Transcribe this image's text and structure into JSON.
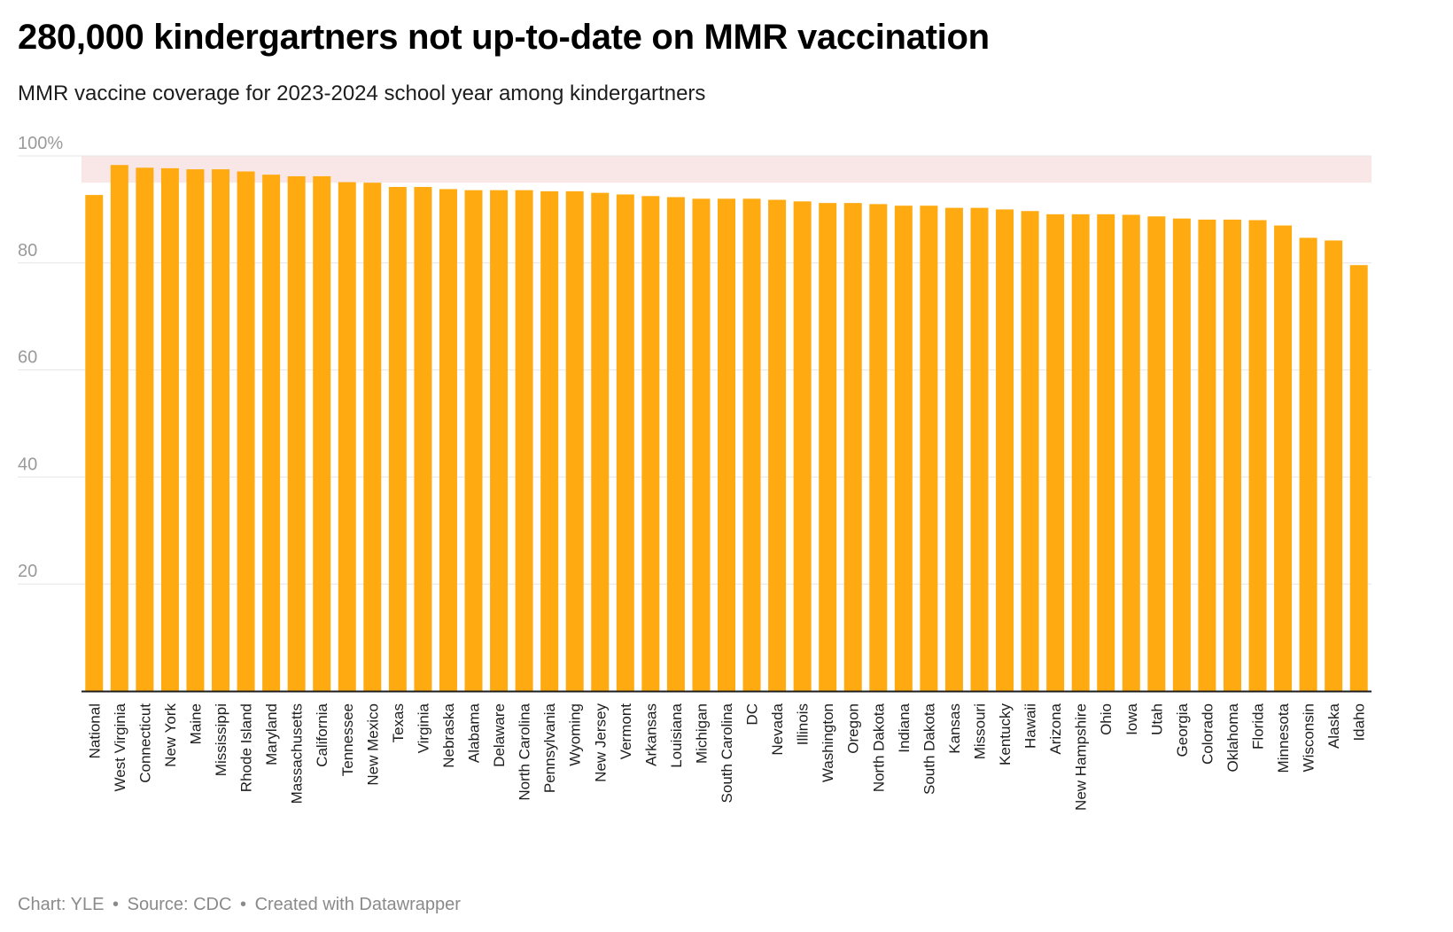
{
  "title": "280,000 kindergartners not up-to-date on MMR vaccination",
  "subtitle": "MMR vaccine coverage for 2023-2024 school year among kindergartners",
  "footer": {
    "chart_credit": "Chart: YLE",
    "source": "Source: CDC",
    "created_with": "Created with Datawrapper",
    "separator": "•"
  },
  "colors": {
    "bar": "#FFAA10",
    "target_band": "#F9E6E6",
    "gridline": "#E6E6E6",
    "axis": "#1d1d1d"
  },
  "chart_data": {
    "type": "bar",
    "title": "280,000 kindergartners not up-to-date on MMR vaccination",
    "subtitle": "MMR vaccine coverage for 2023-2024 school year among kindergartners",
    "xlabel": "",
    "ylabel": "",
    "ylim": [
      0,
      100
    ],
    "yticks": [
      20,
      40,
      60,
      80,
      100
    ],
    "ytick_labels": [
      "20",
      "40",
      "60",
      "80",
      "100%"
    ],
    "grid": true,
    "target_band": [
      95,
      100
    ],
    "categories": [
      "National",
      "West Virginia",
      "Connecticut",
      "New York",
      "Maine",
      "Mississippi",
      "Rhode Island",
      "Maryland",
      "Massachusetts",
      "California",
      "Tennessee",
      "New Mexico",
      "Texas",
      "Virginia",
      "Nebraska",
      "Alabama",
      "Delaware",
      "North Carolina",
      "Pennsylvania",
      "Wyoming",
      "New Jersey",
      "Vermont",
      "Arkansas",
      "Louisiana",
      "Michigan",
      "South Carolina",
      "DC",
      "Nevada",
      "Illinois",
      "Washington",
      "Oregon",
      "North Dakota",
      "Indiana",
      "South Dakota",
      "Kansas",
      "Missouri",
      "Kentucky",
      "Hawaii",
      "Arizona",
      "New Hampshire",
      "Ohio",
      "Iowa",
      "Utah",
      "Georgia",
      "Colorado",
      "Oklahoma",
      "Florida",
      "Minnesota",
      "Wisconsin",
      "Alaska",
      "Idaho"
    ],
    "values": [
      92.7,
      98.3,
      97.8,
      97.7,
      97.5,
      97.5,
      97.1,
      96.5,
      96.2,
      96.2,
      95.1,
      95.0,
      94.2,
      94.2,
      93.8,
      93.6,
      93.6,
      93.6,
      93.4,
      93.4,
      93.1,
      92.8,
      92.5,
      92.3,
      92.0,
      92.0,
      92.0,
      91.8,
      91.5,
      91.2,
      91.2,
      91.0,
      90.7,
      90.7,
      90.3,
      90.3,
      90.0,
      89.7,
      89.1,
      89.1,
      89.1,
      89.0,
      88.7,
      88.3,
      88.1,
      88.1,
      88.0,
      87.0,
      84.7,
      84.2,
      79.6
    ]
  }
}
